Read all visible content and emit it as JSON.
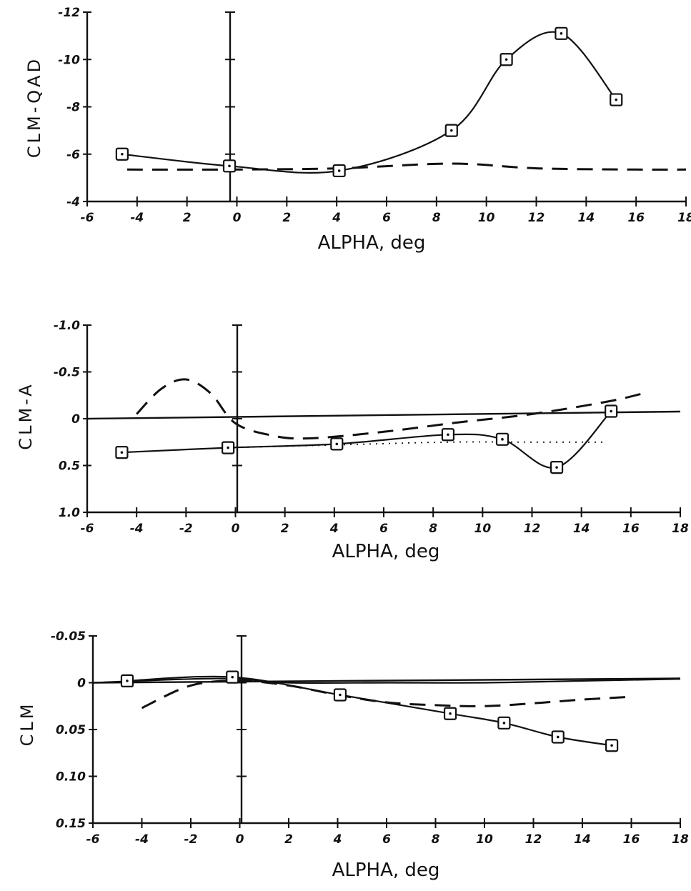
{
  "chart_data": [
    {
      "type": "line",
      "ylabel": "CLM-QAD",
      "xlabel": "ALPHA, deg",
      "xlim": [
        -6,
        18
      ],
      "ylim": [
        -4,
        -12
      ],
      "xticks": [
        "-6",
        "-4",
        "2",
        "0",
        "2",
        "4",
        "6",
        "8",
        "10",
        "12",
        "14",
        "16",
        "18"
      ],
      "yticks": [
        "-12",
        "-10",
        "-8",
        "-6",
        "-4"
      ],
      "series": [
        {
          "style": "solid-with-square-markers",
          "x": [
            -4.6,
            -0.3,
            4.1,
            8.6,
            10.8,
            13.0,
            15.2
          ],
          "y": [
            -6.0,
            -5.5,
            -5.3,
            -7.0,
            -10.0,
            -11.1,
            -8.3
          ]
        },
        {
          "style": "dashed",
          "x": [
            -4.4,
            -0.3,
            4.1,
            8.6,
            12.0,
            16.0,
            18.0
          ],
          "y": [
            -5.35,
            -5.35,
            -5.4,
            -5.6,
            -5.4,
            -5.35,
            -5.35
          ]
        }
      ]
    },
    {
      "type": "line",
      "ylabel": "CLM-A",
      "xlabel": "ALPHA, deg",
      "xlim": [
        -6,
        18
      ],
      "ylim": [
        1.0,
        -1.0
      ],
      "xticks": [
        "-6",
        "-4",
        "-2",
        "0",
        "2",
        "4",
        "6",
        "8",
        "10",
        "12",
        "14",
        "16",
        "18"
      ],
      "yticks": [
        "-1.0",
        "-0.5",
        "0",
        "0.5",
        "1.0"
      ],
      "series": [
        {
          "style": "solid-with-square-markers",
          "x": [
            -4.6,
            -0.3,
            4.1,
            8.6,
            10.8,
            13.0,
            15.2
          ],
          "y": [
            0.36,
            0.31,
            0.27,
            0.17,
            0.22,
            0.52,
            -0.08
          ]
        },
        {
          "style": "dashed",
          "x": [
            -4.0,
            -3.0,
            -2.0,
            -1.0,
            0.0,
            1.5,
            3.0,
            6.0,
            9.0,
            12.0,
            15.0,
            16.5
          ],
          "y": [
            -0.05,
            -0.32,
            -0.42,
            -0.27,
            0.05,
            0.18,
            0.21,
            0.14,
            0.04,
            -0.05,
            -0.18,
            -0.27
          ]
        },
        {
          "style": "dotted",
          "x": [
            -0.3,
            4.1,
            8.6,
            12.0,
            15.0
          ],
          "y": [
            0.31,
            0.28,
            0.25,
            0.25,
            0.25
          ]
        }
      ]
    },
    {
      "type": "line",
      "ylabel": "CLM",
      "xlabel": "ALPHA, deg",
      "xlim": [
        -6,
        18
      ],
      "ylim": [
        0.15,
        -0.05
      ],
      "xticks": [
        "-6",
        "-4",
        "-2",
        "0",
        "2",
        "4",
        "6",
        "8",
        "10",
        "12",
        "14",
        "16",
        "18"
      ],
      "yticks": [
        "-0.05",
        "0",
        "0.05",
        "0.10",
        "0.15"
      ],
      "series": [
        {
          "style": "solid-with-square-markers",
          "x": [
            -4.6,
            -0.3,
            4.1,
            8.6,
            10.8,
            13.0,
            15.2
          ],
          "y": [
            -0.002,
            -0.006,
            0.013,
            0.033,
            0.043,
            0.058,
            0.067
          ]
        },
        {
          "style": "dashed",
          "x": [
            -4.0,
            -2.0,
            0.0,
            2.0,
            4.0,
            6.0,
            8.0,
            10.0,
            12.0,
            14.0,
            16.0
          ],
          "y": [
            0.027,
            0.003,
            -0.002,
            0.003,
            0.013,
            0.021,
            0.024,
            0.025,
            0.022,
            0.018,
            0.015
          ]
        },
        {
          "style": "solid",
          "x": [
            -6.0,
            -2.0,
            0.0,
            2.0,
            6.0,
            10.0,
            14.0,
            18.0
          ],
          "y": [
            0.0,
            -0.004,
            -0.004,
            0.0,
            0.0,
            0.0,
            -0.002,
            -0.004
          ]
        }
      ]
    }
  ]
}
